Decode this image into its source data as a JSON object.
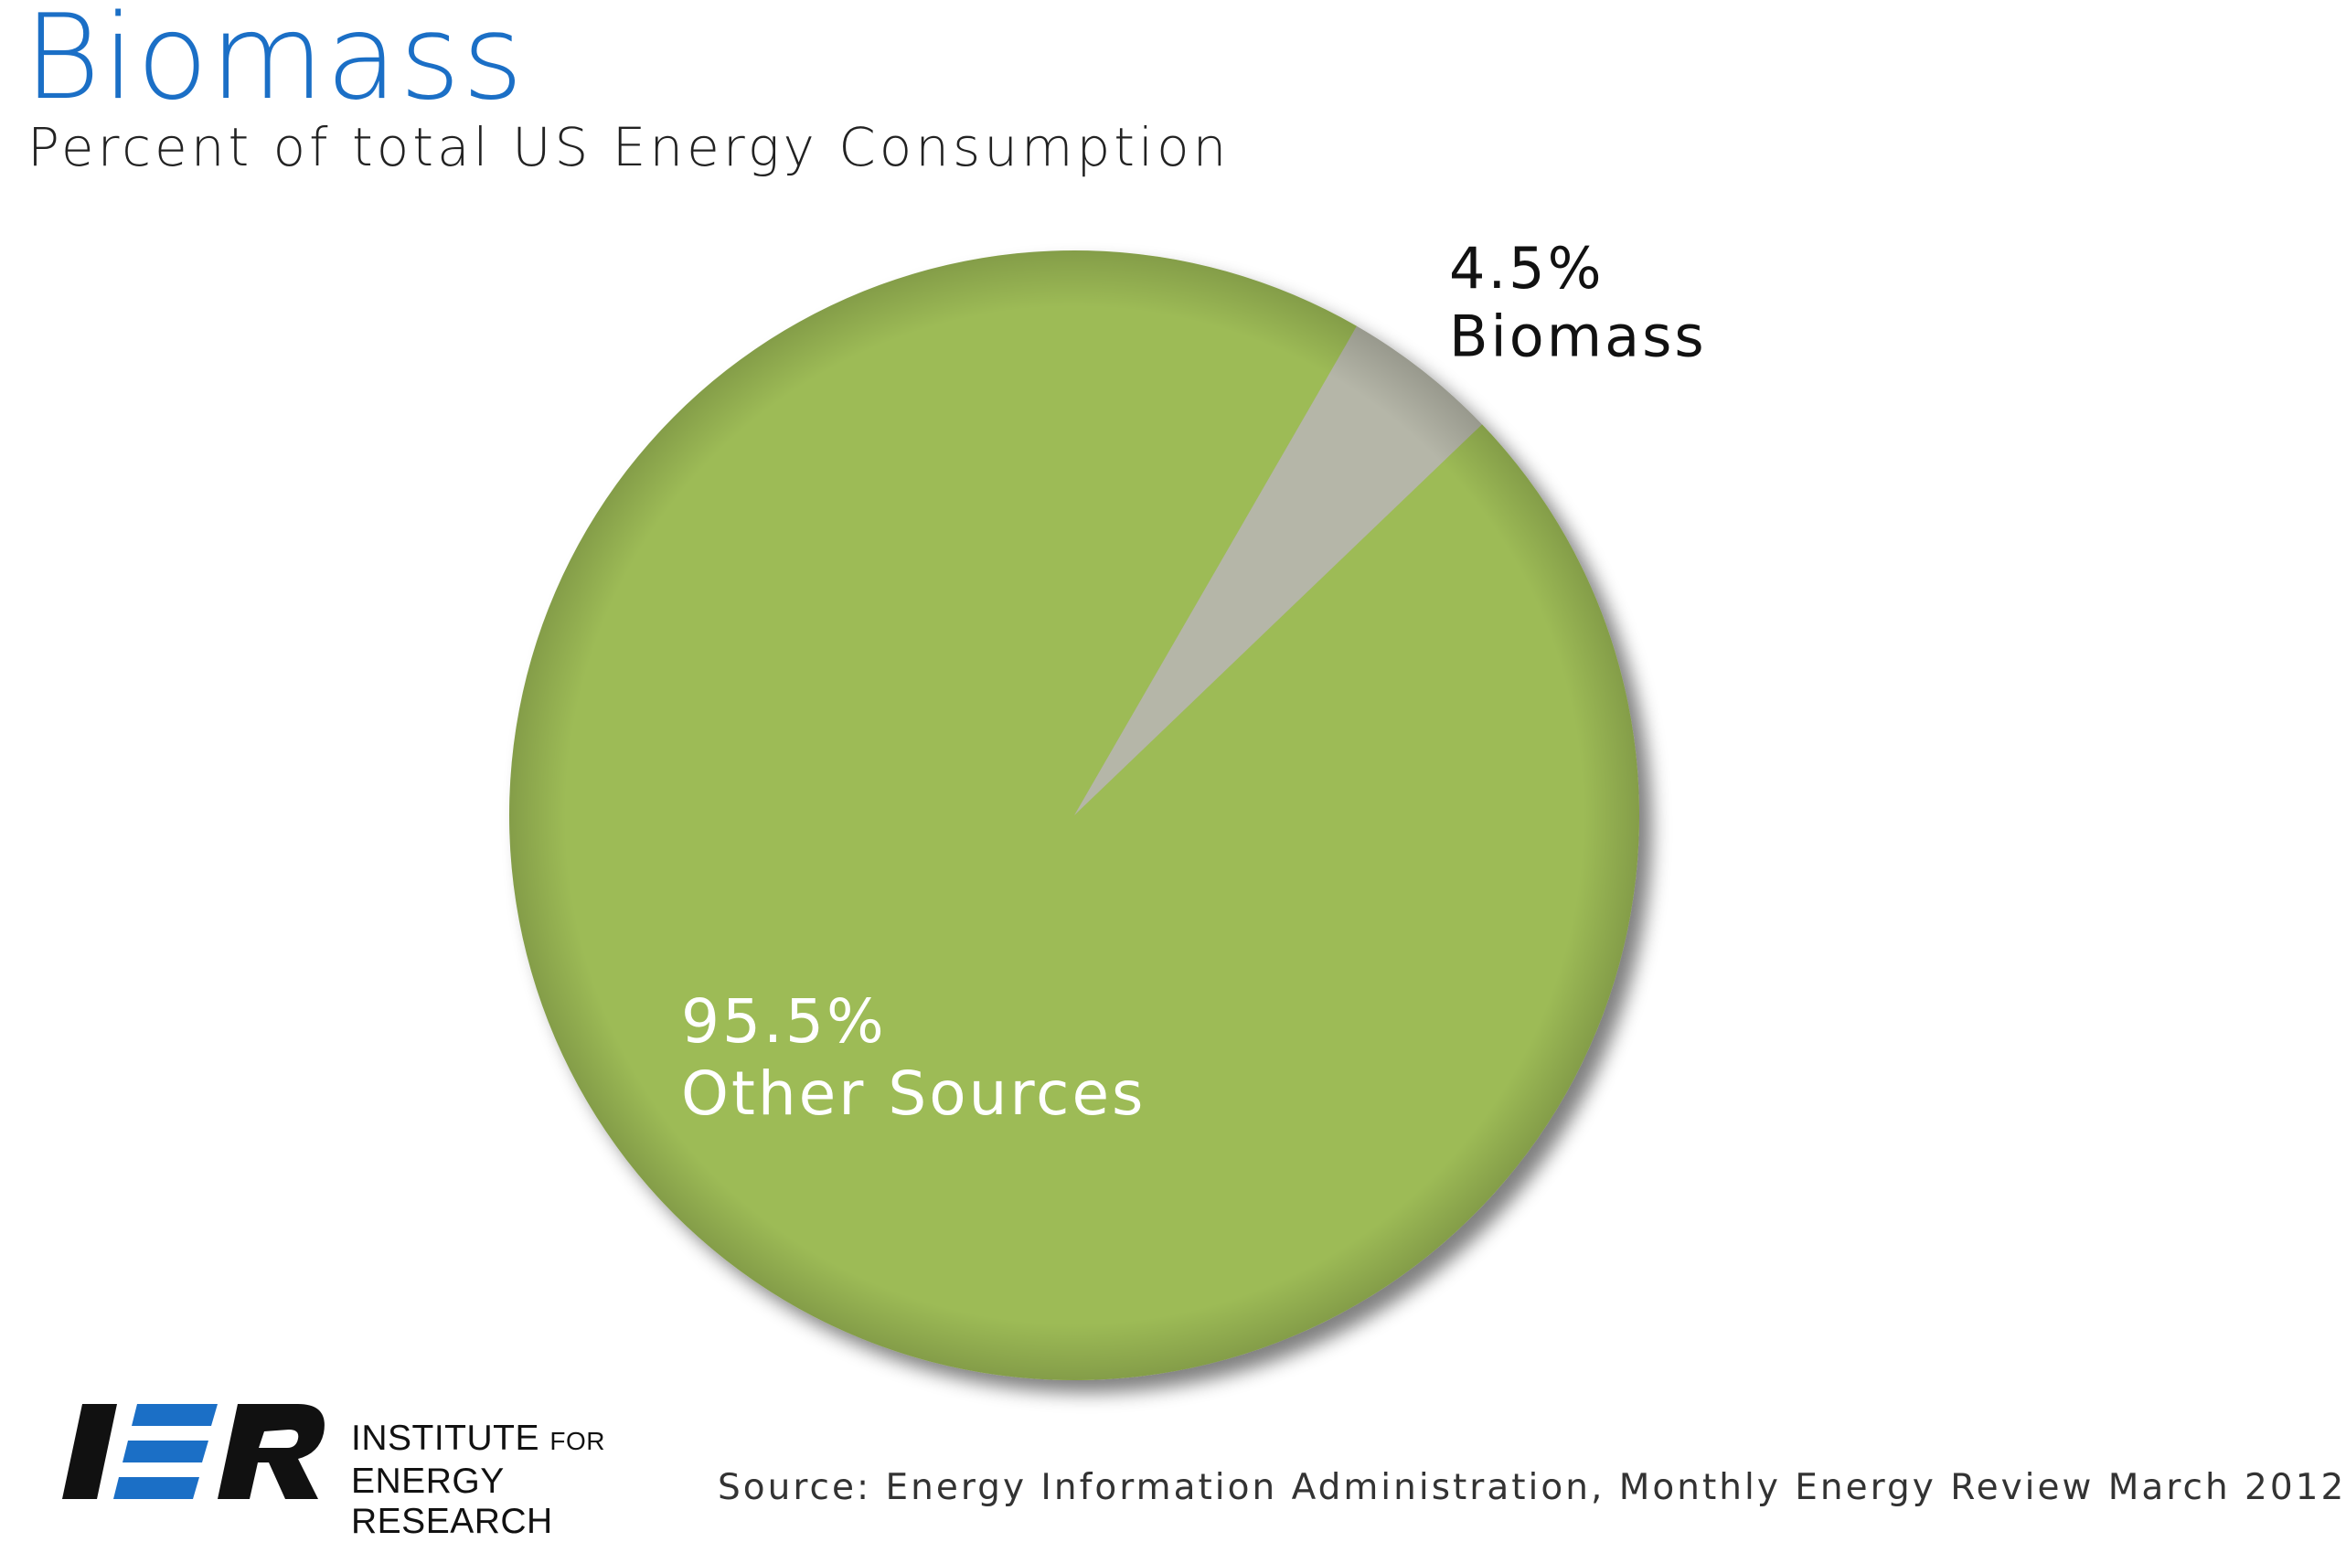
{
  "title": "Biomass",
  "subtitle": "Percent of total US Energy Consumption",
  "source": "Source: Energy Information Administration, Monthly Energy Review March 2012",
  "logo": {
    "mark": "IER",
    "line1": "INSTITUTE",
    "line1_small": "FOR",
    "line2": "ENERGY RESEARCH"
  },
  "colors": {
    "title": "#1b6fc6",
    "biomass": "#b5b6a8",
    "other": "#9dbb57",
    "logo_blue": "#1b6fc6"
  },
  "chart_data": {
    "type": "pie",
    "title": "Biomass",
    "subtitle": "Percent of total US Energy Consumption",
    "slices": [
      {
        "name": "Biomass",
        "value": 4.5,
        "label": "4.5%",
        "color": "#b5b6a8"
      },
      {
        "name": "Other Sources",
        "value": 95.5,
        "label": "95.5%",
        "color": "#9dbb57"
      }
    ]
  }
}
